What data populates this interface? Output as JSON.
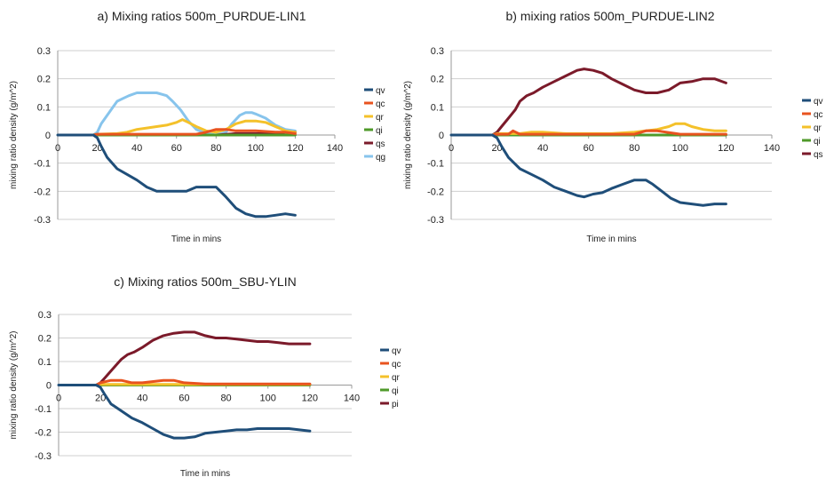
{
  "chart_data": [
    {
      "type": "line",
      "title": "a) Mixing ratios 500m_PURDUE-LIN1",
      "xlabel": "Time in mins",
      "ylabel": "mixing ratio density (g/m^2)",
      "xlim": [
        0,
        140
      ],
      "ylim": [
        -0.3,
        0.3
      ],
      "xticks": [
        0,
        20,
        40,
        60,
        80,
        100,
        120,
        140
      ],
      "yticks": [
        -0.3,
        -0.2,
        -0.1,
        0,
        0.1,
        0.2,
        0.3
      ],
      "ytick_labels": [
        "-0.3",
        "-0.2",
        "-0.1",
        "0",
        "0.1",
        "0.2",
        "0.3"
      ],
      "grid": "horizontal",
      "legend": "right",
      "series": [
        {
          "name": "qv",
          "color": "#1f4e79",
          "x": [
            0,
            15,
            18,
            20,
            22,
            25,
            30,
            35,
            40,
            45,
            50,
            55,
            60,
            65,
            70,
            75,
            80,
            85,
            90,
            95,
            100,
            105,
            110,
            115,
            120
          ],
          "y": [
            0,
            0,
            0,
            -0.01,
            -0.04,
            -0.08,
            -0.12,
            -0.14,
            -0.16,
            -0.185,
            -0.2,
            -0.2,
            -0.2,
            -0.2,
            -0.185,
            -0.185,
            -0.185,
            -0.22,
            -0.26,
            -0.28,
            -0.29,
            -0.29,
            -0.285,
            -0.28,
            -0.285
          ]
        },
        {
          "name": "qc",
          "color": "#e8531f",
          "x": [
            18,
            20,
            30,
            40,
            50,
            60,
            70,
            75,
            80,
            85,
            90,
            100,
            110,
            115,
            120
          ],
          "y": [
            0,
            0.003,
            0.003,
            0.003,
            0.003,
            0.003,
            0.003,
            0.01,
            0.02,
            0.02,
            0.015,
            0.015,
            0.01,
            0.01,
            0.005
          ]
        },
        {
          "name": "qr",
          "color": "#f4c12a",
          "x": [
            18,
            20,
            30,
            35,
            40,
            45,
            50,
            55,
            60,
            63,
            66,
            70,
            75,
            80,
            85,
            90,
            95,
            100,
            105,
            110,
            115,
            120
          ],
          "y": [
            0,
            0.003,
            0.005,
            0.01,
            0.02,
            0.025,
            0.03,
            0.035,
            0.045,
            0.055,
            0.045,
            0.03,
            0.015,
            0.01,
            0.02,
            0.04,
            0.05,
            0.05,
            0.045,
            0.03,
            0.015,
            0.01
          ]
        },
        {
          "name": "qi",
          "color": "#4f9a2a",
          "x": [
            18,
            20,
            30,
            40,
            50,
            60,
            70,
            80,
            90,
            100,
            110,
            120
          ],
          "y": [
            0,
            0,
            0,
            0,
            0,
            0,
            0,
            0,
            0,
            0,
            0,
            0
          ]
        },
        {
          "name": "qs",
          "color": "#7b1a2a",
          "x": [
            18,
            20,
            30,
            40,
            50,
            60,
            70,
            80,
            90,
            100,
            110,
            115,
            120
          ],
          "y": [
            0,
            0,
            0,
            0,
            0,
            0,
            0,
            0,
            0.005,
            0.005,
            0.005,
            0.01,
            0.01
          ]
        },
        {
          "name": "qg",
          "color": "#87c4ec",
          "x": [
            18,
            20,
            22,
            25,
            28,
            30,
            33,
            36,
            40,
            45,
            50,
            55,
            58,
            62,
            66,
            70,
            75,
            80,
            85,
            88,
            92,
            95,
            98,
            100,
            105,
            110,
            115,
            120
          ],
          "y": [
            0,
            0.01,
            0.04,
            0.07,
            0.1,
            0.12,
            0.13,
            0.14,
            0.15,
            0.15,
            0.15,
            0.14,
            0.12,
            0.09,
            0.05,
            0.02,
            0.005,
            0,
            0.01,
            0.04,
            0.07,
            0.08,
            0.08,
            0.075,
            0.06,
            0.035,
            0.02,
            0.015
          ]
        }
      ]
    },
    {
      "type": "line",
      "title": "b) mixing ratios 500m_PURDUE-LIN2",
      "xlabel": "Time in mins",
      "ylabel": "mixing ratio density (g/m^2)",
      "xlim": [
        0,
        140
      ],
      "ylim": [
        -0.3,
        0.3
      ],
      "xticks": [
        0,
        20,
        40,
        60,
        80,
        100,
        120,
        140
      ],
      "yticks": [
        -0.3,
        -0.2,
        -0.1,
        0,
        0.1,
        0.2,
        0.3
      ],
      "ytick_labels": [
        "-0.3",
        "-0.2",
        "-0.1",
        "0",
        "0.1",
        "0.2",
        "0.3"
      ],
      "grid": "horizontal",
      "legend": "right",
      "series": [
        {
          "name": "qv",
          "color": "#1f4e79",
          "x": [
            0,
            15,
            18,
            20,
            22,
            25,
            30,
            35,
            40,
            45,
            50,
            55,
            58,
            62,
            66,
            70,
            75,
            80,
            85,
            88,
            92,
            96,
            100,
            105,
            110,
            115,
            120
          ],
          "y": [
            0,
            0,
            0,
            -0.01,
            -0.04,
            -0.08,
            -0.12,
            -0.14,
            -0.16,
            -0.185,
            -0.2,
            -0.215,
            -0.22,
            -0.21,
            -0.205,
            -0.19,
            -0.175,
            -0.16,
            -0.16,
            -0.175,
            -0.2,
            -0.225,
            -0.24,
            -0.245,
            -0.25,
            -0.245,
            -0.245
          ]
        },
        {
          "name": "qc",
          "color": "#e8531f",
          "x": [
            18,
            20,
            25,
            27,
            30,
            40,
            50,
            60,
            70,
            80,
            85,
            90,
            100,
            110,
            120
          ],
          "y": [
            0,
            0.003,
            0.003,
            0.015,
            0.003,
            0.003,
            0.003,
            0.003,
            0.003,
            0.003,
            0.015,
            0.015,
            0.003,
            0.003,
            0.003
          ]
        },
        {
          "name": "qr",
          "color": "#f4c12a",
          "x": [
            18,
            20,
            30,
            35,
            40,
            50,
            60,
            70,
            80,
            90,
            95,
            98,
            102,
            105,
            110,
            115,
            120
          ],
          "y": [
            0,
            0.005,
            0.005,
            0.01,
            0.01,
            0.005,
            0.005,
            0.005,
            0.01,
            0.02,
            0.03,
            0.04,
            0.04,
            0.03,
            0.02,
            0.015,
            0.015
          ]
        },
        {
          "name": "qi",
          "color": "#4f9a2a",
          "x": [
            18,
            20,
            30,
            40,
            50,
            60,
            70,
            80,
            90,
            100,
            110,
            120
          ],
          "y": [
            0,
            0,
            0,
            0,
            0,
            0,
            0,
            0,
            0,
            0,
            0,
            0
          ]
        },
        {
          "name": "qs",
          "color": "#7b1a2a",
          "x": [
            18,
            20,
            22,
            25,
            28,
            30,
            33,
            36,
            40,
            45,
            50,
            55,
            58,
            62,
            66,
            70,
            75,
            80,
            85,
            90,
            95,
            100,
            105,
            110,
            115,
            120
          ],
          "y": [
            0,
            0.01,
            0.03,
            0.06,
            0.09,
            0.12,
            0.14,
            0.15,
            0.17,
            0.19,
            0.21,
            0.23,
            0.235,
            0.23,
            0.22,
            0.2,
            0.18,
            0.16,
            0.15,
            0.15,
            0.16,
            0.185,
            0.19,
            0.2,
            0.2,
            0.185
          ]
        }
      ]
    },
    {
      "type": "line",
      "title": "c) Mixing ratios 500m_SBU-YLIN",
      "xlabel": "Time in mins",
      "ylabel": "mixing ratio density (g/m^2)",
      "xlim": [
        0,
        140
      ],
      "ylim": [
        -0.3,
        0.3
      ],
      "xticks": [
        0,
        20,
        40,
        60,
        80,
        100,
        120,
        140
      ],
      "yticks": [
        -0.3,
        -0.2,
        -0.1,
        0,
        0.1,
        0.2,
        0.3
      ],
      "ytick_labels": [
        "-0.3",
        "-0.2",
        "-0.1",
        "0",
        "0.1",
        "0.2",
        "0.3"
      ],
      "grid": "horizontal",
      "legend": "right",
      "series": [
        {
          "name": "qv",
          "color": "#1f4e79",
          "x": [
            0,
            15,
            18,
            20,
            22,
            25,
            30,
            35,
            40,
            45,
            50,
            55,
            60,
            65,
            70,
            75,
            80,
            85,
            90,
            95,
            100,
            105,
            110,
            115,
            120
          ],
          "y": [
            0,
            0,
            0,
            -0.01,
            -0.04,
            -0.08,
            -0.11,
            -0.14,
            -0.16,
            -0.185,
            -0.21,
            -0.225,
            -0.225,
            -0.22,
            -0.205,
            -0.2,
            -0.195,
            -0.19,
            -0.19,
            -0.185,
            -0.185,
            -0.185,
            -0.185,
            -0.19,
            -0.195
          ]
        },
        {
          "name": "qc",
          "color": "#e8531f",
          "x": [
            18,
            20,
            25,
            30,
            35,
            40,
            50,
            55,
            60,
            70,
            80,
            90,
            100,
            110,
            120
          ],
          "y": [
            0,
            0.01,
            0.02,
            0.02,
            0.01,
            0.01,
            0.02,
            0.02,
            0.01,
            0.005,
            0.005,
            0.005,
            0.005,
            0.005,
            0.005
          ]
        },
        {
          "name": "qr",
          "color": "#f4c12a",
          "x": [
            18,
            20,
            30,
            40,
            50,
            60,
            70,
            80,
            90,
            100,
            110,
            120
          ],
          "y": [
            0,
            0.003,
            0.003,
            0.003,
            0.003,
            0.003,
            0.003,
            0.003,
            0.003,
            0.003,
            0.003,
            0.003
          ]
        },
        {
          "name": "qi",
          "color": "#4f9a2a",
          "x": [
            18,
            20,
            30,
            40,
            50,
            60,
            70,
            80,
            90,
            100,
            110,
            120
          ],
          "y": [
            0,
            0,
            0,
            0,
            0,
            0,
            0,
            0,
            0,
            0,
            0,
            0
          ]
        },
        {
          "name": "pi",
          "color": "#7b1a2a",
          "x": [
            18,
            20,
            22,
            25,
            28,
            30,
            33,
            36,
            40,
            45,
            50,
            55,
            60,
            65,
            70,
            75,
            80,
            85,
            90,
            95,
            100,
            105,
            110,
            115,
            120
          ],
          "y": [
            0,
            0.01,
            0.03,
            0.06,
            0.09,
            0.11,
            0.13,
            0.14,
            0.16,
            0.19,
            0.21,
            0.22,
            0.225,
            0.225,
            0.21,
            0.2,
            0.2,
            0.195,
            0.19,
            0.185,
            0.185,
            0.18,
            0.175,
            0.175,
            0.175
          ]
        }
      ]
    }
  ]
}
